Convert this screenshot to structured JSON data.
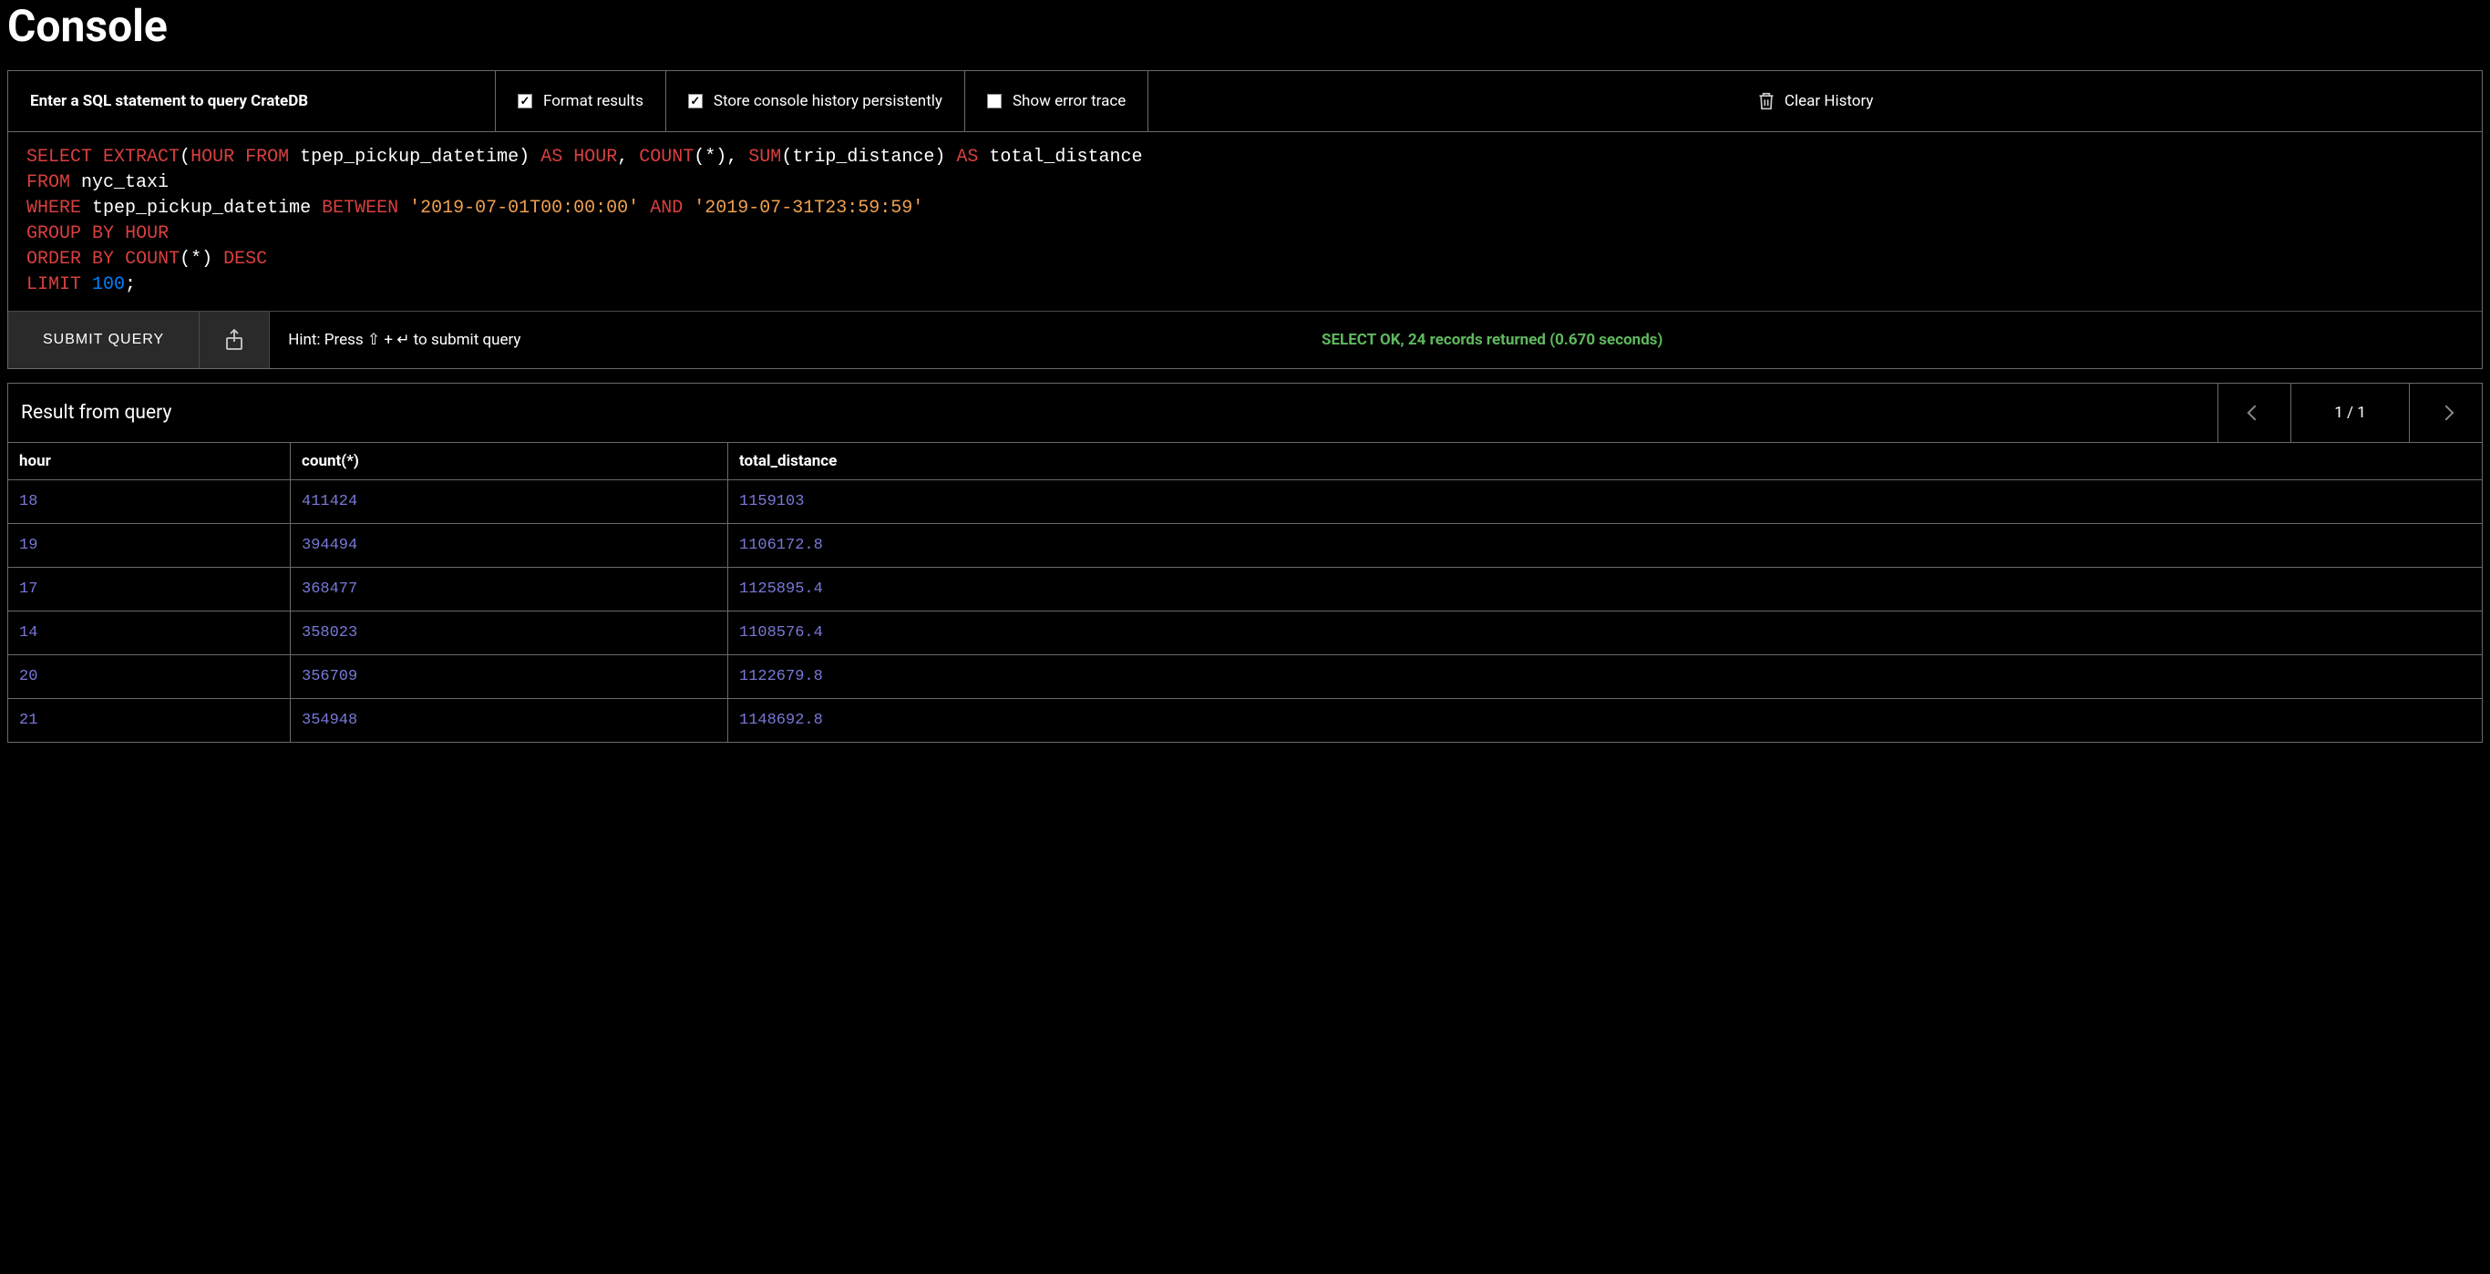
{
  "page_title": "Console",
  "toolbar": {
    "hint": "Enter a SQL statement to query CrateDB",
    "format_results": {
      "label": "Format results",
      "checked": true
    },
    "store_history": {
      "label": "Store console history persistently",
      "checked": true
    },
    "show_error_trace": {
      "label": "Show error trace",
      "checked": false
    },
    "clear_history": "Clear History"
  },
  "sql": {
    "tokens": [
      [
        "kw-select",
        "SELECT"
      ],
      [
        "punct",
        " "
      ],
      [
        "kw-extract",
        "EXTRACT"
      ],
      [
        "punct",
        "("
      ],
      [
        "kw-hour",
        "HOUR"
      ],
      [
        "punct",
        " "
      ],
      [
        "kw-from",
        "FROM"
      ],
      [
        "punct",
        " "
      ],
      [
        "ident",
        "tpep_pickup_datetime"
      ],
      [
        "punct",
        ")"
      ],
      [
        "punct",
        " "
      ],
      [
        "kw-as",
        "AS"
      ],
      [
        "punct",
        " "
      ],
      [
        "kw-hour",
        "HOUR"
      ],
      [
        "punct",
        ", "
      ],
      [
        "kw-count",
        "COUNT"
      ],
      [
        "punct",
        "(*), "
      ],
      [
        "kw-sum",
        "SUM"
      ],
      [
        "punct",
        "("
      ],
      [
        "ident",
        "trip_distance"
      ],
      [
        "punct",
        ")"
      ],
      [
        "punct",
        " "
      ],
      [
        "kw-as",
        "AS"
      ],
      [
        "punct",
        " "
      ],
      [
        "ident",
        "total_distance"
      ],
      [
        "punct",
        "\n"
      ],
      [
        "kw-from",
        "FROM"
      ],
      [
        "punct",
        " "
      ],
      [
        "ident",
        "nyc_taxi"
      ],
      [
        "punct",
        "\n"
      ],
      [
        "kw-where",
        "WHERE"
      ],
      [
        "punct",
        " "
      ],
      [
        "ident",
        "tpep_pickup_datetime"
      ],
      [
        "punct",
        " "
      ],
      [
        "kw-between",
        "BETWEEN"
      ],
      [
        "punct",
        " "
      ],
      [
        "string",
        "'2019-07-01T00:00:00'"
      ],
      [
        "punct",
        " "
      ],
      [
        "kw-and",
        "AND"
      ],
      [
        "punct",
        " "
      ],
      [
        "string",
        "'2019-07-31T23:59:59'"
      ],
      [
        "punct",
        "\n"
      ],
      [
        "kw-group",
        "GROUP"
      ],
      [
        "punct",
        " "
      ],
      [
        "kw-by",
        "BY"
      ],
      [
        "punct",
        " "
      ],
      [
        "kw-hour",
        "HOUR"
      ],
      [
        "punct",
        "\n"
      ],
      [
        "kw-order",
        "ORDER"
      ],
      [
        "punct",
        " "
      ],
      [
        "kw-by",
        "BY"
      ],
      [
        "punct",
        " "
      ],
      [
        "kw-count",
        "COUNT"
      ],
      [
        "punct",
        "(*) "
      ],
      [
        "kw-desc",
        "DESC"
      ],
      [
        "punct",
        "\n"
      ],
      [
        "kw-limit",
        "LIMIT"
      ],
      [
        "punct",
        " "
      ],
      [
        "number",
        "100"
      ],
      [
        "punct",
        ";"
      ]
    ]
  },
  "actions": {
    "submit": "SUBMIT QUERY",
    "hint": "Hint: Press ⇧ + ↵ to submit query",
    "status": "SELECT OK, 24 records returned (0.670 seconds)"
  },
  "results": {
    "title": "Result from query",
    "page_indicator": "1 / 1",
    "columns": [
      "hour",
      "count(*)",
      "total_distance"
    ],
    "rows": [
      [
        "18",
        "411424",
        "1159103"
      ],
      [
        "19",
        "394494",
        "1106172.8"
      ],
      [
        "17",
        "368477",
        "1125895.4"
      ],
      [
        "14",
        "358023",
        "1108576.4"
      ],
      [
        "20",
        "356709",
        "1122679.8"
      ],
      [
        "21",
        "354948",
        "1148692.8"
      ]
    ]
  },
  "colors": {
    "background": "#000000",
    "text": "#ffffff",
    "border": "#6a6a6a",
    "keyword": "#d93f3f",
    "string": "#f0a050",
    "number": "#0080ff",
    "status_ok": "#5fb85f",
    "cell_value": "#7878d8",
    "button_bg": "#2a2a2a"
  }
}
